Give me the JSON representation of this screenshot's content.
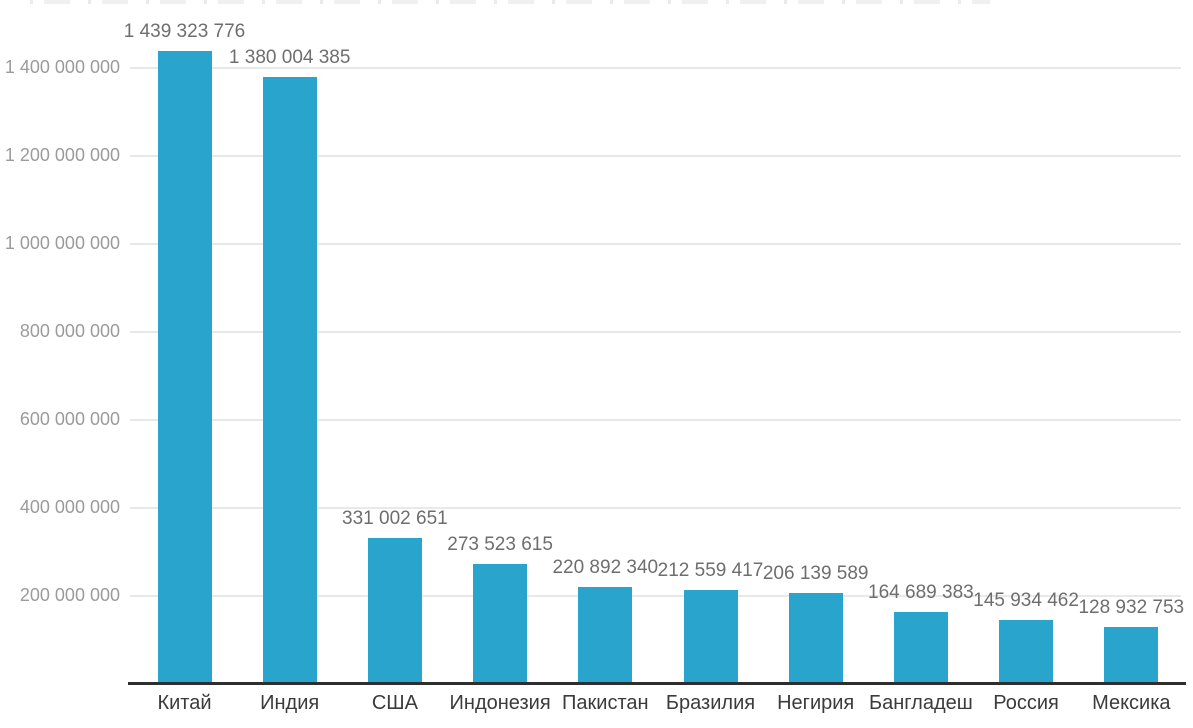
{
  "chart_data": {
    "type": "bar",
    "title": "",
    "xlabel": "",
    "ylabel": "",
    "legend": "none",
    "grid": "horizontal",
    "ylim": [
      0,
      1560000000
    ],
    "bar_color": "#29a4cd",
    "categories": [
      "Китай",
      "Индия",
      "США",
      "Индонезия",
      "Пакистан",
      "Бразилия",
      "Негирия",
      "Бангладеш",
      "Россия",
      "Мексика"
    ],
    "values": [
      1439323776,
      1380004385,
      331002651,
      273523615,
      220892340,
      212559417,
      206139589,
      164689383,
      145934462,
      128932753
    ],
    "value_labels": [
      "1 439 323 776",
      "1 380 004 385",
      "331 002 651",
      "273 523 615",
      "220 892 340",
      "212 559 417",
      "206 139 589",
      "164 689 383",
      "145 934 462",
      "128 932 753"
    ],
    "yticks": [
      {
        "value": 200000000,
        "label": "200 000 000"
      },
      {
        "value": 400000000,
        "label": "400 000 000"
      },
      {
        "value": 600000000,
        "label": "600 000 000"
      },
      {
        "value": 800000000,
        "label": "800 000 000"
      },
      {
        "value": 1000000000,
        "label": "1 000 000 000"
      },
      {
        "value": 1200000000,
        "label": "1 200 000 000"
      },
      {
        "value": 1400000000,
        "label": "1 400 000 000"
      }
    ]
  },
  "colors": {
    "bar": "#29a4cd",
    "gridline": "#e9e9e9",
    "axis_line": "#2e2e2e",
    "tick_label": "#9b9b9b",
    "value_label": "#6e6e6e",
    "category_label": "#3b3b3b",
    "background": "#ffffff"
  }
}
